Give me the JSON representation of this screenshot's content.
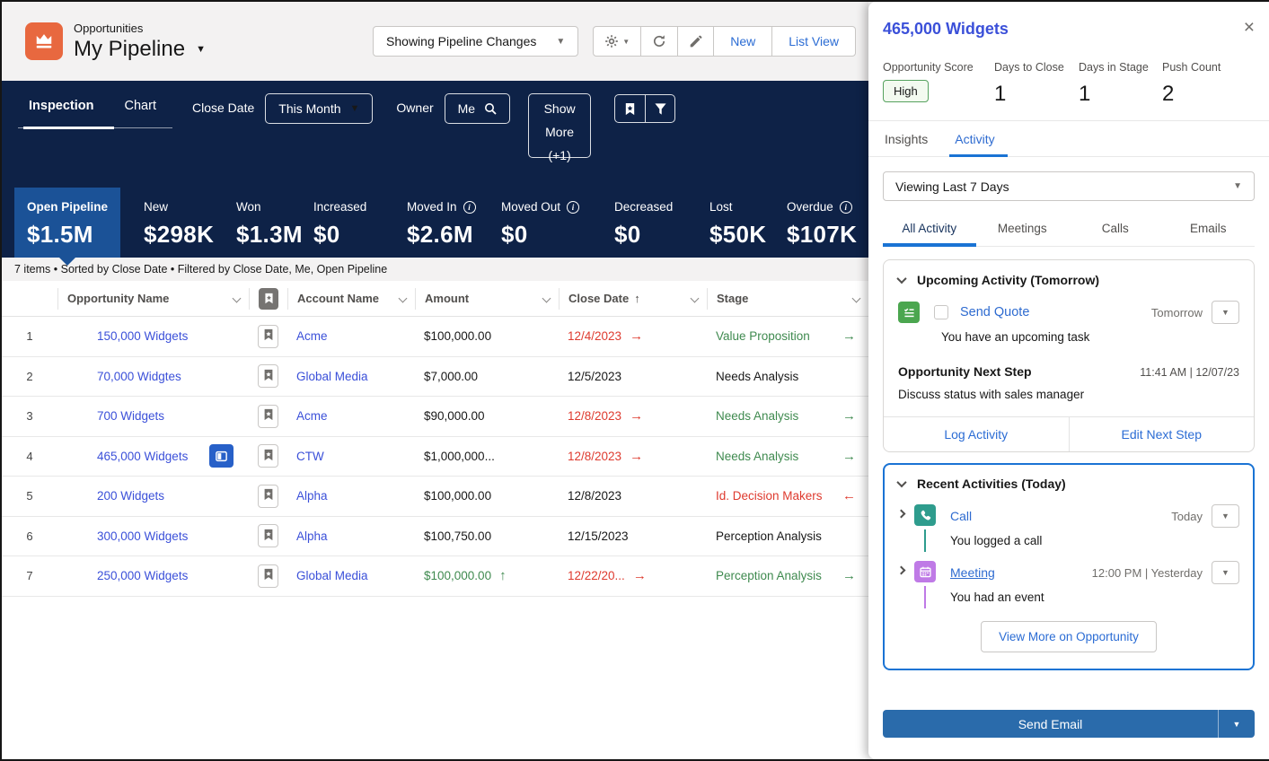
{
  "colors": {
    "navy": "#0e2247",
    "accent_box": "#1b5297",
    "link_blue": "#3b50d9",
    "action_blue": "#2b6cd4",
    "red": "#de3a2e",
    "green": "#3f8a4f",
    "object_icon_orange": "#e8683f",
    "highlight_card_border": "#1a73d4",
    "send_email_blue": "#2a6bab"
  },
  "header": {
    "context": "Opportunities",
    "title": "My Pipeline",
    "view_dropdown": "Showing Pipeline Changes",
    "new_button": "New",
    "list_view_button": "List View"
  },
  "nav": {
    "tabs": [
      {
        "label": "Inspection",
        "active": true
      },
      {
        "label": "Chart",
        "active": false
      }
    ],
    "close_date_label": "Close Date",
    "close_date_value": "This Month",
    "owner_label": "Owner",
    "owner_value": "Me",
    "show_more": "Show More (+1)"
  },
  "metrics": [
    {
      "label": "Open Pipeline",
      "value": "$1.5M",
      "active": true,
      "info": false
    },
    {
      "label": "New",
      "value": "$298K",
      "active": false,
      "info": false
    },
    {
      "label": "Won",
      "value": "$1.3M",
      "active": false,
      "info": false
    },
    {
      "label": "Increased",
      "value": "$0",
      "active": false,
      "info": false
    },
    {
      "label": "Moved In",
      "value": "$2.6M",
      "active": false,
      "info": true
    },
    {
      "label": "Moved Out",
      "value": "$0",
      "active": false,
      "info": true
    },
    {
      "label": "Decreased",
      "value": "$0",
      "active": false,
      "info": false
    },
    {
      "label": "Lost",
      "value": "$50K",
      "active": false,
      "info": false
    },
    {
      "label": "Overdue",
      "value": "$107K",
      "active": false,
      "info": true
    }
  ],
  "list": {
    "summary": "7 items • Sorted by Close Date • Filtered by Close Date, Me, Open Pipeline",
    "columns": [
      "Opportunity Name",
      "Account Name",
      "Amount",
      "Close Date",
      "Stage"
    ],
    "rows": [
      {
        "num": "1",
        "name": "150,000 Widgets",
        "selected": false,
        "account": "Acme",
        "amount": "$100,000.00",
        "amount_color": "default",
        "amount_arrow": null,
        "close_date": "12/4/2023",
        "close_red": true,
        "close_arrow": "right",
        "stage": "Value Proposition",
        "stage_color": "green",
        "stage_arrow": "right"
      },
      {
        "num": "2",
        "name": "70,000 Widgtes",
        "selected": false,
        "account": "Global Media",
        "amount": "$7,000.00",
        "amount_color": "default",
        "amount_arrow": null,
        "close_date": "12/5/2023",
        "close_red": false,
        "close_arrow": null,
        "stage": "Needs Analysis",
        "stage_color": "default",
        "stage_arrow": null
      },
      {
        "num": "3",
        "name": "700 Widgets",
        "selected": false,
        "account": "Acme",
        "amount": "$90,000.00",
        "amount_color": "default",
        "amount_arrow": null,
        "close_date": "12/8/2023",
        "close_red": true,
        "close_arrow": "right",
        "stage": "Needs Analysis",
        "stage_color": "green",
        "stage_arrow": "right"
      },
      {
        "num": "4",
        "name": "465,000 Widgets",
        "selected": true,
        "account": "CTW",
        "amount": "$1,000,000...",
        "amount_color": "default",
        "amount_arrow": null,
        "close_date": "12/8/2023",
        "close_red": true,
        "close_arrow": "right",
        "stage": "Needs Analysis",
        "stage_color": "green",
        "stage_arrow": "right"
      },
      {
        "num": "5",
        "name": "200 Widgets",
        "selected": false,
        "account": "Alpha",
        "amount": "$100,000.00",
        "amount_color": "default",
        "amount_arrow": null,
        "close_date": "12/8/2023",
        "close_red": false,
        "close_arrow": null,
        "stage": "Id. Decision Makers",
        "stage_color": "red",
        "stage_arrow": "left"
      },
      {
        "num": "6",
        "name": "300,000 Widgets",
        "selected": false,
        "account": "Alpha",
        "amount": "$100,750.00",
        "amount_color": "default",
        "amount_arrow": null,
        "close_date": "12/15/2023",
        "close_red": false,
        "close_arrow": null,
        "stage": "Perception Analysis",
        "stage_color": "default",
        "stage_arrow": null
      },
      {
        "num": "7",
        "name": "250,000 Widgets",
        "selected": false,
        "account": "Global Media",
        "amount": "$100,000.00",
        "amount_color": "green",
        "amount_arrow": "up",
        "close_date": "12/22/20...",
        "close_red": true,
        "close_arrow": "right",
        "stage": "Perception Analysis",
        "stage_color": "green",
        "stage_arrow": "right"
      }
    ]
  },
  "panel": {
    "title": "465,000 Widgets",
    "stats": [
      {
        "label": "Opportunity Score",
        "value": "High",
        "badge": true
      },
      {
        "label": "Days to Close",
        "value": "1",
        "badge": false
      },
      {
        "label": "Days in Stage",
        "value": "1",
        "badge": false
      },
      {
        "label": "Push Count",
        "value": "2",
        "badge": false
      }
    ],
    "tabs": [
      {
        "label": "Insights",
        "active": false
      },
      {
        "label": "Activity",
        "active": true
      }
    ],
    "viewing_filter": "Viewing Last 7 Days",
    "activity_tabs": [
      {
        "label": "All Activity",
        "active": true
      },
      {
        "label": "Meetings",
        "active": false
      },
      {
        "label": "Calls",
        "active": false
      },
      {
        "label": "Emails",
        "active": false
      }
    ],
    "upcoming": {
      "header": "Upcoming Activity (Tomorrow)",
      "task_title": "Send Quote",
      "task_when": "Tomorrow",
      "task_description": "You have an upcoming task",
      "next_step_label": "Opportunity Next Step",
      "next_step_time": "11:41 AM | 12/07/23",
      "next_step_text": "Discuss status with sales manager",
      "actions": [
        "Log Activity",
        "Edit Next Step"
      ]
    },
    "recent": {
      "header": "Recent Activities (Today)",
      "items": [
        {
          "type": "call",
          "title": "Call",
          "when": "Today",
          "description": "You logged a call",
          "underline": false
        },
        {
          "type": "meeting",
          "title": "Meeting",
          "when": "12:00 PM | Yesterday",
          "description": "You had an event",
          "underline": true
        }
      ],
      "view_more": "View More on Opportunity"
    },
    "send_email": "Send Email"
  }
}
